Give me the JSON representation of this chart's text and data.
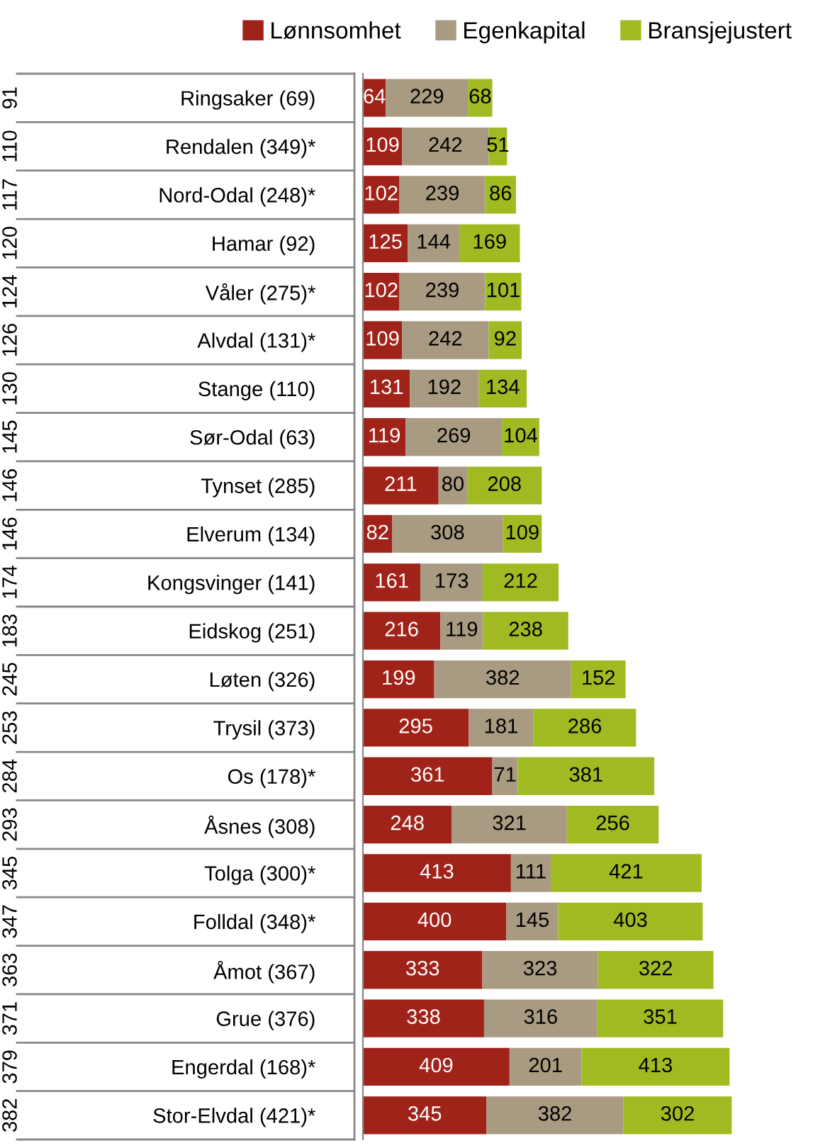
{
  "chart_data": {
    "type": "bar",
    "orientation": "horizontal",
    "stacked": true,
    "data_labels": true,
    "legend": "top",
    "grid": false,
    "tick_labels": "y",
    "categories": [
      "Ringsaker (69)",
      "Rendalen (349)*",
      "Nord-Odal (248)*",
      "Hamar (92)",
      "Våler (275)*",
      "Alvdal (131)*",
      "Stange (110)",
      "Sør-Odal (63)",
      "Tynset (285)",
      "Elverum (134)",
      "Kongsvinger (141)",
      "Eidskog (251)",
      "Løten (326)",
      "Trysil (373)",
      "Os (178)*",
      "Åsnes (308)",
      "Tolga (300)*",
      "Folldal (348)*",
      "Åmot (367)",
      "Grue (376)",
      "Engerdal (168)*",
      "Stor-Elvdal (421)*"
    ],
    "series": [
      {
        "name": "Lønnsomhet",
        "color": "#a0231a",
        "values": [
          64,
          109,
          102,
          125,
          102,
          109,
          131,
          119,
          211,
          82,
          161,
          216,
          199,
          295,
          361,
          248,
          413,
          400,
          333,
          338,
          409,
          345
        ]
      },
      {
        "name": "Egenkapital",
        "color": "#a89b82",
        "values": [
          229,
          242,
          239,
          144,
          239,
          242,
          192,
          269,
          80,
          308,
          173,
          119,
          382,
          181,
          71,
          321,
          111,
          145,
          323,
          316,
          201,
          382
        ]
      },
      {
        "name": "Bransjejustert",
        "color": "#a0bb22",
        "values": [
          68,
          51,
          86,
          169,
          101,
          92,
          134,
          104,
          208,
          109,
          212,
          238,
          152,
          286,
          381,
          256,
          421,
          403,
          322,
          351,
          413,
          302
        ]
      }
    ],
    "annotations": [
      "91",
      "110",
      "117",
      "120",
      "124",
      "126",
      "130",
      "145",
      "146",
      "146",
      "174",
      "183",
      "245",
      "253",
      "284",
      "293",
      "345",
      "347",
      "363",
      "371",
      "379",
      "382"
    ]
  }
}
